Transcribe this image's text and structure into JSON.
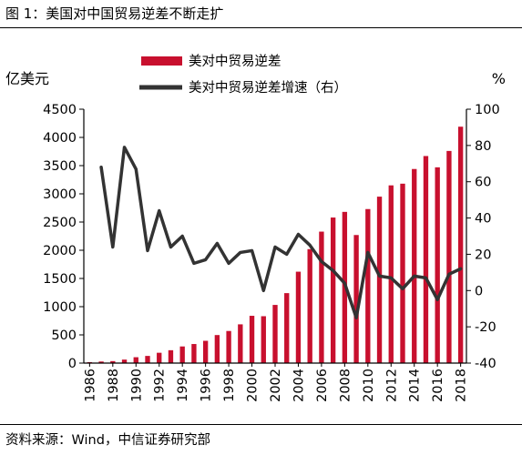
{
  "title": "图 1：美国对中国贸易逆差不断走扩",
  "source": "资料来源：Wind，中信证券研究部",
  "chart_data": {
    "type": "bar",
    "left_unit": "亿美元",
    "right_unit": "%",
    "ylim": [
      0,
      4500
    ],
    "y2lim": [
      -40,
      100
    ],
    "y_ticks": [
      "0",
      "500",
      "1000",
      "1500",
      "2000",
      "2500",
      "3000",
      "3500",
      "4000",
      "4500"
    ],
    "y2_ticks": [
      "-40",
      "-20",
      "0",
      "20",
      "40",
      "60",
      "80",
      "100"
    ],
    "x_tick_labels": [
      "1986",
      "1988",
      "1990",
      "1992",
      "1994",
      "1996",
      "1998",
      "2000",
      "2002",
      "2004",
      "2006",
      "2008",
      "2010",
      "2012",
      "2014",
      "2016",
      "2018"
    ],
    "categories": [
      1986,
      1987,
      1988,
      1989,
      1990,
      1991,
      1992,
      1993,
      1994,
      1995,
      1996,
      1997,
      1998,
      1999,
      2000,
      2001,
      2002,
      2003,
      2004,
      2005,
      2006,
      2007,
      2008,
      2009,
      2010,
      2011,
      2012,
      2013,
      2014,
      2015,
      2016,
      2017,
      2018
    ],
    "series": [
      {
        "name": "美对中贸易逆差",
        "kind": "bar",
        "axis": "left",
        "color": "#c8102e",
        "values": [
          17,
          28,
          35,
          62,
          104,
          127,
          183,
          228,
          295,
          338,
          395,
          497,
          569,
          687,
          838,
          831,
          1031,
          1240,
          1620,
          2020,
          2330,
          2580,
          2680,
          2270,
          2730,
          2950,
          3150,
          3180,
          3440,
          3670,
          3470,
          3760,
          4190
        ]
      },
      {
        "name": "美对中贸易逆差增速（右）",
        "kind": "line",
        "axis": "right",
        "color": "#333333",
        "values": [
          null,
          68,
          24,
          79,
          67,
          22,
          44,
          24,
          30,
          15,
          17,
          26,
          15,
          21,
          22,
          0,
          24,
          20,
          31,
          25,
          16,
          11,
          4,
          -15,
          21,
          8,
          7,
          1,
          8,
          7,
          -5,
          9,
          12
        ]
      }
    ]
  }
}
